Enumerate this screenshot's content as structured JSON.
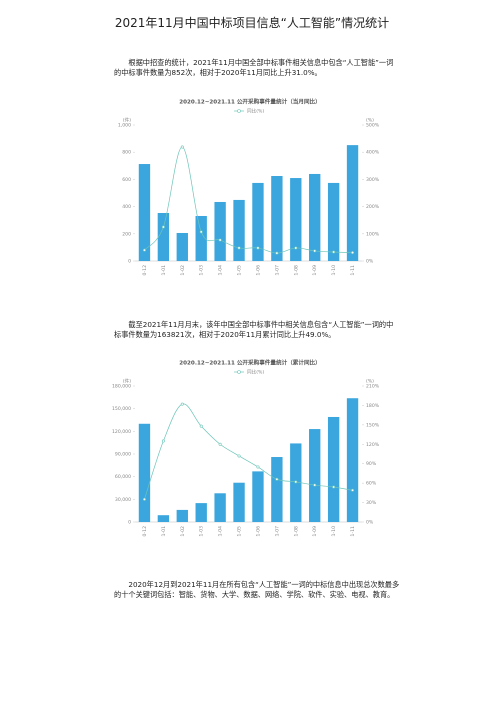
{
  "document": {
    "title": "2021年11月中国中标项目信息“人工智能”情况统计",
    "paragraphs": [
      "根据中招查的统计，2021年11月中国全部中标事件相关信息中包含“人工智能”一词的中标事件数量为852次，相对于2020年11月同比上升31.0%。",
      "截至2021年11月月末，该年中国全部中标事件中相关信息包含“人工智能”一词的中标事件数量为163821次，相对于2020年11月累计同比上升49.0%。",
      "2020年12月到2021年11月在所有包含“人工智能”一词的中标信息中出现总次数最多的十个关键词包括：智能、货物、大学、数据、网络、学院、软件、实验、电视、教育。"
    ]
  },
  "chart_data": [
    {
      "type": "bar",
      "title": "2020.12~2021.11 公开采购事件量统计（当月同比）",
      "y_label": "(件)",
      "y2_label": "(%)",
      "categories": [
        "2020-12",
        "2021-01",
        "2021-02",
        "2021-03",
        "2021-04",
        "2021-05",
        "2021-06",
        "2021-07",
        "2021-08",
        "2021-09",
        "2021-10",
        "2021-11"
      ],
      "series": [
        {
          "color": "#3aa6dd",
          "values": [
            713,
            353,
            206,
            331,
            434,
            449,
            574,
            625,
            610,
            640,
            574,
            852
          ]
        },
        {
          "name": "同比(%)",
          "type": "line",
          "axis": "y2",
          "color": "#6cc5b8",
          "values": [
            40,
            125,
            419,
            107,
            77,
            48,
            48,
            29,
            48,
            37,
            33,
            31
          ]
        }
      ],
      "ylim": [
        0,
        1000
      ],
      "yticks": [
        0,
        200,
        400,
        600,
        800,
        {
          "value": 1000,
          "label": "1,000"
        }
      ],
      "y2lim": [
        0,
        500
      ],
      "y2ticks": [
        {
          "value": 0,
          "label": "0%"
        },
        {
          "value": 100,
          "label": "100%"
        },
        {
          "value": 200,
          "label": "200%"
        },
        {
          "value": 300,
          "label": "300%"
        },
        {
          "value": 400,
          "label": "400%"
        },
        {
          "value": 500,
          "label": "500%"
        }
      ]
    },
    {
      "type": "bar",
      "title": "2020.12~2021.11 公开采购事件量统计（累计同比）",
      "y_label": "(件)",
      "y2_label": "(%)",
      "categories": [
        "2020-12",
        "2021-01",
        "2021-02",
        "2021-03",
        "2021-04",
        "2021-05",
        "2021-06",
        "2021-07",
        "2021-08",
        "2021-09",
        "2021-10",
        "2021-11"
      ],
      "series": [
        {
          "color": "#3aa6dd",
          "values": [
            130000,
            9000,
            16000,
            25000,
            38000,
            52000,
            67000,
            86000,
            104000,
            123000,
            139000,
            163821
          ]
        },
        {
          "name": "同比(%)",
          "type": "line",
          "axis": "y2",
          "color": "#6cc5b8",
          "values": [
            35,
            125,
            182,
            148,
            120,
            102,
            85,
            66,
            62,
            57,
            54,
            49
          ]
        }
      ],
      "ylim": [
        0,
        180000
      ],
      "yticks": [
        0,
        {
          "value": 30000,
          "label": "30,000"
        },
        {
          "value": 60000,
          "label": "60,000"
        },
        {
          "value": 90000,
          "label": "90,000"
        },
        {
          "value": 120000,
          "label": "120,000"
        },
        {
          "value": 150000,
          "label": "150,000"
        },
        {
          "value": 180000,
          "label": "180,000"
        }
      ],
      "y2lim": [
        0,
        210
      ],
      "y2ticks": [
        {
          "value": 0,
          "label": "0%"
        },
        {
          "value": 30,
          "label": "30%"
        },
        {
          "value": 60,
          "label": "60%"
        },
        {
          "value": 90,
          "label": "90%"
        },
        {
          "value": 120,
          "label": "120%"
        },
        {
          "value": 150,
          "label": "150%"
        },
        {
          "value": 180,
          "label": "180%"
        },
        {
          "value": 210,
          "label": "210%"
        }
      ]
    }
  ]
}
